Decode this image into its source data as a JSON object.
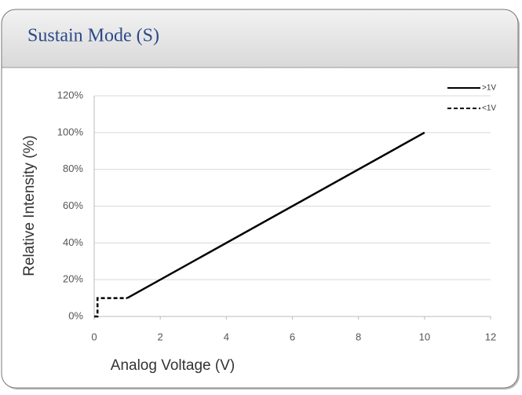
{
  "chart_data": {
    "type": "line",
    "title": "Sustain Mode (S)",
    "x_label": "Analog Voltage (V)",
    "y_label": "Relative Intensity (%)",
    "xlim": [
      0,
      12
    ],
    "xticks": [
      0,
      2,
      4,
      6,
      8,
      10,
      12
    ],
    "ylim": [
      0,
      120
    ],
    "yticks": [
      {
        "value": 0,
        "label": "0%"
      },
      {
        "value": 20,
        "label": "20%"
      },
      {
        "value": 40,
        "label": "40%"
      },
      {
        "value": 60,
        "label": "60%"
      },
      {
        "value": 80,
        "label": "80%"
      },
      {
        "value": 100,
        "label": "100%"
      },
      {
        "value": 120,
        "label": "120%"
      }
    ],
    "grid": true,
    "legend": "top-right",
    "series": [
      {
        "name": ">1V",
        "color": "#000000",
        "dash": "solid",
        "x": [
          1,
          10
        ],
        "values": [
          10,
          100
        ]
      },
      {
        "name": "<1V",
        "color": "#000000",
        "dash": "dashed",
        "x": [
          0,
          0.1,
          0.1,
          1
        ],
        "values": [
          0,
          0,
          10,
          10
        ]
      }
    ]
  }
}
